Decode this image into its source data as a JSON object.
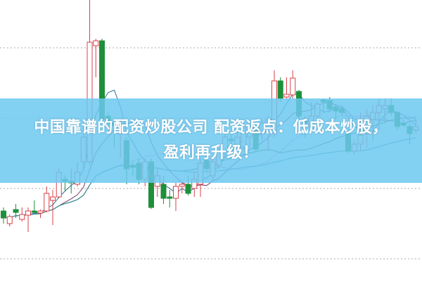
{
  "headline": {
    "line1": "中国靠谱的配资炒股公司 配资返点：低成本炒股，",
    "line2": "盈利再升级！"
  },
  "colors": {
    "up": "#d8424a",
    "down": "#1e8f3a",
    "banner": "#6cc8f0",
    "grid": "#aaaaaa"
  },
  "chart_data": {
    "type": "candlestick",
    "title": "",
    "xlabel": "",
    "ylabel": "",
    "grid": true,
    "ylim": [
      0,
      400
    ],
    "candles": [
      [
        100,
        105,
        82,
        90
      ],
      [
        82,
        95,
        78,
        92
      ],
      [
        102,
        110,
        90,
        98
      ],
      [
        88,
        105,
        85,
        95
      ],
      [
        94,
        105,
        70,
        100
      ],
      [
        100,
        115,
        97,
        98
      ],
      [
        97,
        102,
        90,
        100
      ],
      [
        100,
        135,
        98,
        125
      ],
      [
        115,
        130,
        80,
        120
      ],
      [
        120,
        160,
        118,
        155
      ],
      [
        145,
        150,
        128,
        142
      ],
      [
        142,
        160,
        125,
        140
      ],
      [
        138,
        170,
        135,
        155
      ],
      [
        170,
        220,
        160,
        205
      ],
      [
        170,
        400,
        165,
        340
      ],
      [
        335,
        345,
        290,
        342
      ],
      [
        342,
        345,
        228,
        230
      ],
      [
        235,
        240,
        215,
        225
      ],
      [
        225,
        230,
        190,
        222
      ],
      [
        210,
        230,
        175,
        220
      ],
      [
        200,
        205,
        138,
        160
      ],
      [
        165,
        170,
        150,
        162
      ],
      [
        168,
        175,
        138,
        145
      ],
      [
        145,
        175,
        135,
        170
      ],
      [
        170,
        175,
        103,
        105
      ],
      [
        135,
        160,
        120,
        150
      ],
      [
        138,
        150,
        110,
        118
      ],
      [
        120,
        130,
        105,
        118
      ],
      [
        118,
        140,
        100,
        135
      ],
      [
        135,
        142,
        125,
        138
      ],
      [
        138,
        150,
        122,
        125
      ],
      [
        132,
        155,
        120,
        145
      ],
      [
        138,
        175,
        120,
        168
      ],
      [
        172,
        180,
        155,
        160
      ],
      [
        150,
        175,
        142,
        170
      ],
      [
        165,
        190,
        160,
        185
      ],
      [
        185,
        210,
        175,
        205
      ],
      [
        202,
        210,
        190,
        200
      ],
      [
        190,
        215,
        185,
        205
      ],
      [
        190,
        230,
        185,
        220
      ],
      [
        205,
        225,
        190,
        215
      ],
      [
        220,
        225,
        185,
        188
      ],
      [
        210,
        230,
        200,
        225
      ],
      [
        215,
        235,
        185,
        230
      ],
      [
        210,
        300,
        205,
        285
      ],
      [
        285,
        290,
        255,
        260
      ],
      [
        262,
        290,
        260,
        266
      ],
      [
        265,
        300,
        260,
        289
      ],
      [
        270,
        272,
        230,
        235
      ],
      [
        230,
        235,
        205,
        225
      ],
      [
        220,
        255,
        210,
        235
      ],
      [
        235,
        255,
        230,
        252
      ],
      [
        258,
        260,
        240,
        255
      ],
      [
        257,
        262,
        240,
        245
      ],
      [
        248,
        252,
        230,
        242
      ],
      [
        245,
        250,
        235,
        240
      ],
      [
        210,
        215,
        182,
        185
      ],
      [
        185,
        200,
        180,
        195
      ],
      [
        195,
        240,
        185,
        208
      ],
      [
        210,
        245,
        190,
        235
      ],
      [
        230,
        250,
        200,
        240
      ],
      [
        240,
        260,
        215,
        250
      ],
      [
        245,
        260,
        225,
        250
      ],
      [
        250,
        260,
        235,
        240
      ],
      [
        240,
        242,
        215,
        220
      ],
      [
        225,
        230,
        220,
        222
      ],
      [
        220,
        225,
        195,
        210
      ],
      [
        215,
        230,
        210,
        220
      ]
    ],
    "candle_fields": [
      "open",
      "high",
      "low",
      "close"
    ],
    "moving_averages": [
      {
        "period": 5,
        "color": "#2f6f9a"
      },
      {
        "period": 10,
        "color": "#7a3a6a"
      },
      {
        "period": 20,
        "color": "#e39ae0"
      },
      {
        "period": 30,
        "color": "#2e6b3a"
      },
      {
        "period": 60,
        "color": "#2a8a96"
      }
    ]
  }
}
